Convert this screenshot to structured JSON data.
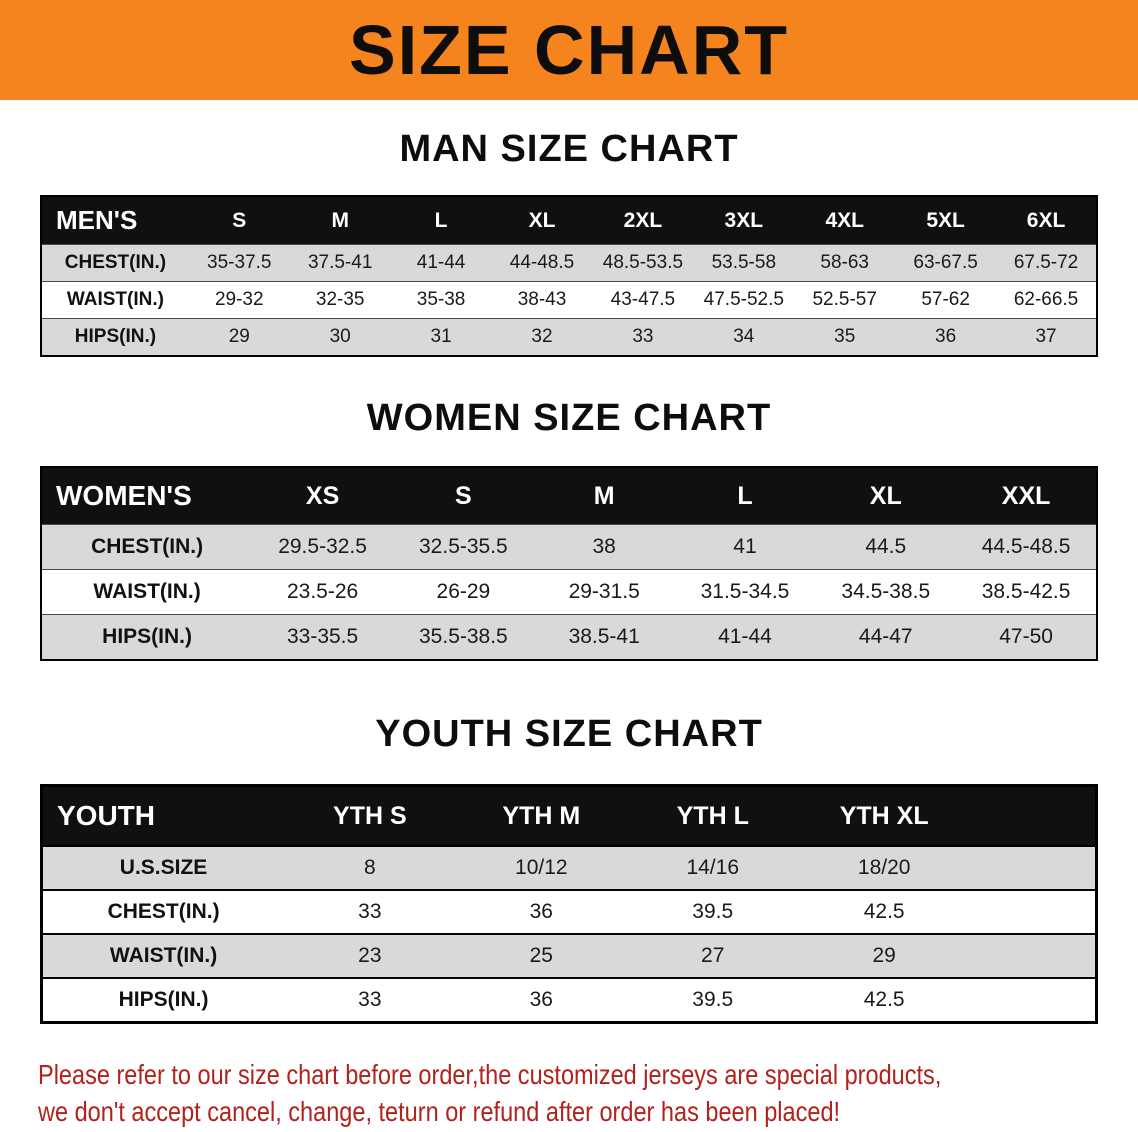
{
  "banner": {
    "title": "SIZE CHART"
  },
  "men": {
    "heading": "MAN SIZE CHART",
    "header": [
      "MEN'S",
      "S",
      "M",
      "L",
      "XL",
      "2XL",
      "3XL",
      "4XL",
      "5XL",
      "6XL"
    ],
    "rows": [
      [
        "CHEST(IN.)",
        "35-37.5",
        "37.5-41",
        "41-44",
        "44-48.5",
        "48.5-53.5",
        "53.5-58",
        "58-63",
        "63-67.5",
        "67.5-72"
      ],
      [
        "WAIST(IN.)",
        "29-32",
        "32-35",
        "35-38",
        "38-43",
        "43-47.5",
        "47.5-52.5",
        "52.5-57",
        "57-62",
        "62-66.5"
      ],
      [
        "HIPS(IN.)",
        "29",
        "30",
        "31",
        "32",
        "33",
        "34",
        "35",
        "36",
        "37"
      ]
    ]
  },
  "women": {
    "heading": "WOMEN SIZE CHART",
    "header": [
      "WOMEN'S",
      "XS",
      "S",
      "M",
      "L",
      "XL",
      "XXL"
    ],
    "rows": [
      [
        "CHEST(IN.)",
        "29.5-32.5",
        "32.5-35.5",
        "38",
        "41",
        "44.5",
        "44.5-48.5"
      ],
      [
        "WAIST(IN.)",
        "23.5-26",
        "26-29",
        "29-31.5",
        "31.5-34.5",
        "34.5-38.5",
        "38.5-42.5"
      ],
      [
        "HIPS(IN.)",
        "33-35.5",
        "35.5-38.5",
        "38.5-41",
        "41-44",
        "44-47",
        "47-50"
      ]
    ]
  },
  "youth": {
    "heading": "YOUTH SIZE CHART",
    "header": [
      "YOUTH",
      "YTH S",
      "YTH M",
      "YTH L",
      "YTH XL"
    ],
    "rows": [
      [
        "U.S.SIZE",
        "8",
        "10/12",
        "14/16",
        "18/20"
      ],
      [
        "CHEST(IN.)",
        "33",
        "36",
        "39.5",
        "42.5"
      ],
      [
        "WAIST(IN.)",
        "23",
        "25",
        "27",
        "29"
      ],
      [
        "HIPS(IN.)",
        "33",
        "36",
        "39.5",
        "42.5"
      ]
    ]
  },
  "disclaimer": {
    "line1": "Please refer to our size chart before order,the customized jerseys are special products,",
    "line2": "we don't accept cancel, change, teturn or refund after order has been placed!"
  },
  "colors": {
    "banner_bg": "#f5841f",
    "table_header_bg": "#101010",
    "stripe_bg": "#d9d9d9",
    "disclaimer_red": "#b1221c"
  }
}
